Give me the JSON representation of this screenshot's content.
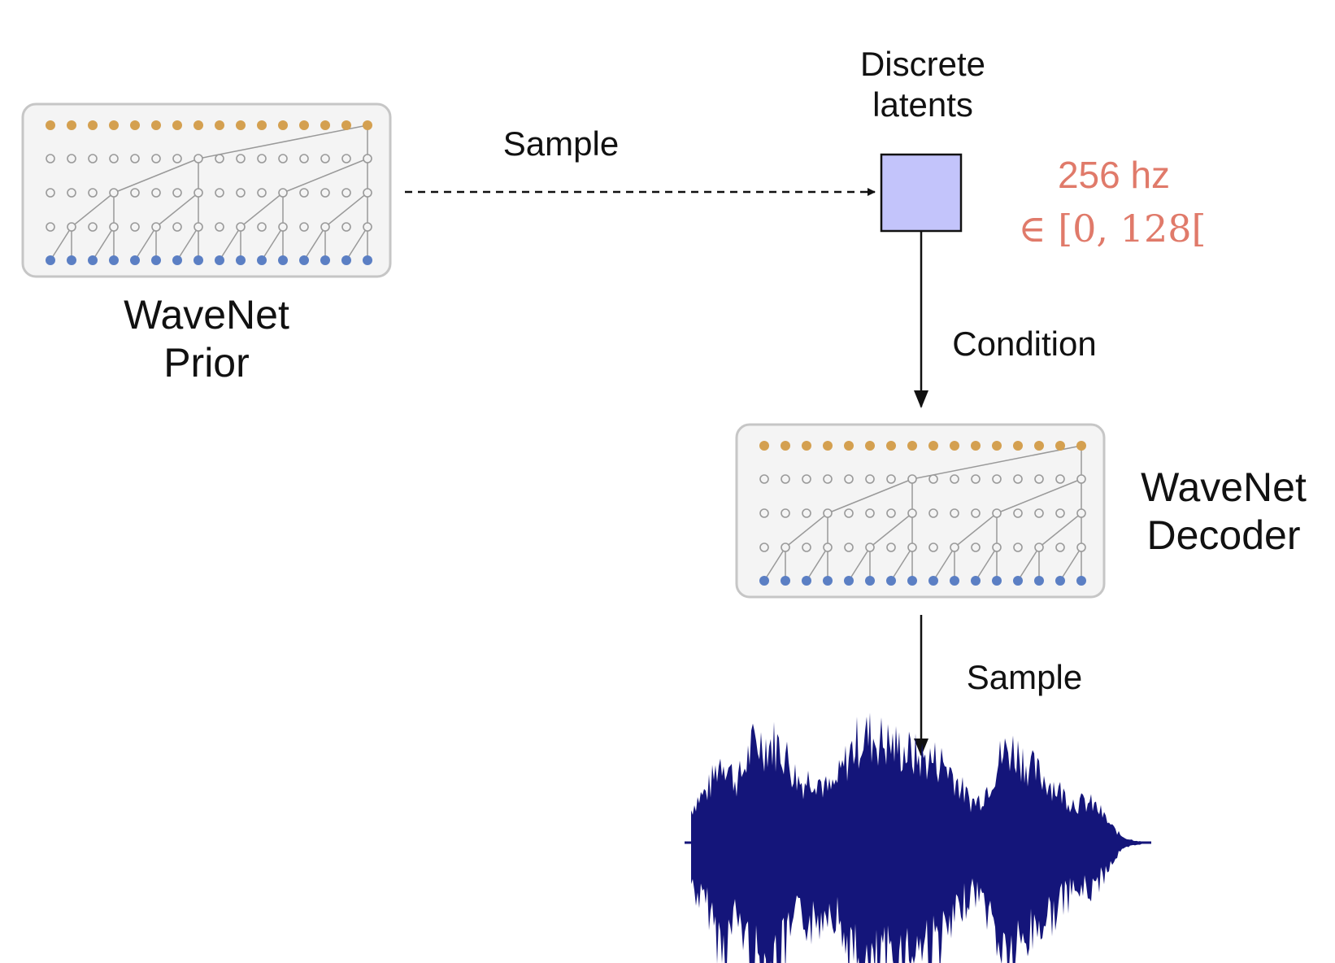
{
  "prior": {
    "title_line1": "WaveNet",
    "title_line2": "Prior"
  },
  "decoder": {
    "title_line1": "WaveNet",
    "title_line2": "Decoder"
  },
  "latents": {
    "label_line1": "Discrete",
    "label_line2": "latents",
    "rate": "256 hz",
    "range": "∈ [0, 128["
  },
  "arrows": {
    "prior_to_latents": "Sample",
    "latents_to_decoder": "Condition",
    "decoder_to_audio": "Sample"
  },
  "colors": {
    "output_node": "#d4a050",
    "hidden_node_stroke": "#9a9a9a",
    "input_node": "#5b7fc4",
    "latent_box": "#c3c4fb",
    "waveform": "#14157a",
    "math_text": "#e07a6a",
    "panel_border": "#c6c6c6"
  }
}
